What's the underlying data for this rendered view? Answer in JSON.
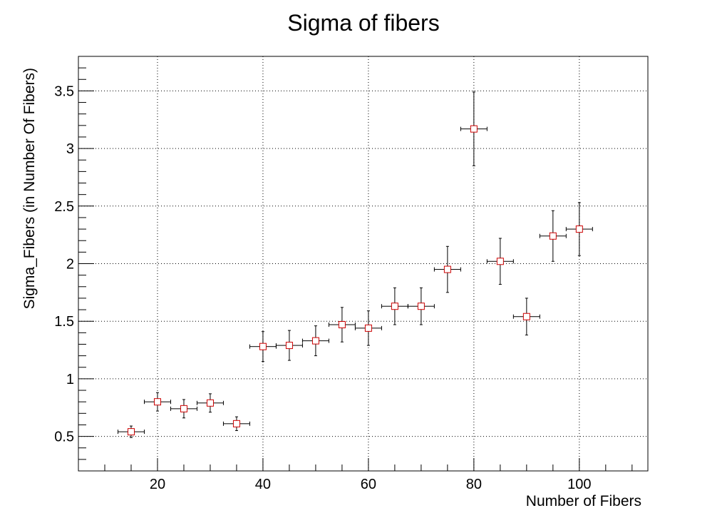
{
  "chart_data": {
    "type": "scatter",
    "title": "Sigma of fibers",
    "xlabel": "Number of Fibers",
    "ylabel": "Sigma_Fibers (in Number Of Fibers)",
    "xlim": [
      5,
      113
    ],
    "ylim": [
      0.2,
      3.8
    ],
    "grid": true,
    "x_ticks": [
      20,
      40,
      60,
      80,
      100
    ],
    "y_ticks": [
      0.5,
      1,
      1.5,
      2,
      2.5,
      3,
      3.5
    ],
    "x_tick_labels": [
      "20",
      "40",
      "60",
      "80",
      "100"
    ],
    "y_tick_labels": [
      "0.5",
      "1",
      "1.5",
      "2",
      "2.5",
      "3",
      "3.5"
    ],
    "marker": "open-square",
    "marker_color": "#cc0000",
    "error_bar_color": "#000000",
    "series": [
      {
        "x": [
          15,
          20,
          25,
          30,
          35,
          40,
          45,
          50,
          55,
          60,
          65,
          70,
          75,
          80,
          85,
          90,
          95,
          100
        ],
        "y": [
          0.54,
          0.8,
          0.74,
          0.79,
          0.61,
          1.28,
          1.29,
          1.33,
          1.47,
          1.44,
          1.63,
          1.63,
          1.95,
          3.17,
          2.02,
          1.54,
          2.24,
          2.3
        ],
        "x_err": [
          2.5,
          2.5,
          2.5,
          2.5,
          2.5,
          2.5,
          2.5,
          2.5,
          2.5,
          2.5,
          2.5,
          2.5,
          2.5,
          2.5,
          2.5,
          2.5,
          2.5,
          2.5
        ],
        "y_err": [
          0.05,
          0.08,
          0.08,
          0.08,
          0.06,
          0.13,
          0.13,
          0.13,
          0.15,
          0.15,
          0.16,
          0.16,
          0.2,
          0.32,
          0.2,
          0.16,
          0.22,
          0.23
        ]
      }
    ]
  }
}
